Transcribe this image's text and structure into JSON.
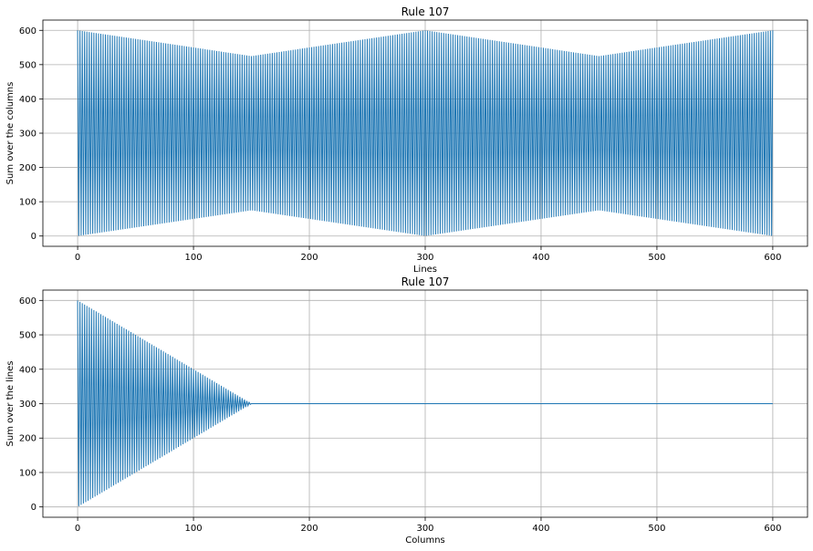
{
  "chart_data": [
    {
      "type": "line",
      "title": "Rule 107",
      "xlabel": "Lines",
      "ylabel": "Sum over the columns",
      "xlim": [
        -30,
        630
      ],
      "ylim": [
        -30,
        630
      ],
      "xticks": [
        0,
        100,
        200,
        300,
        400,
        500,
        600
      ],
      "yticks": [
        0,
        100,
        200,
        300,
        400,
        500,
        600
      ],
      "grid": true,
      "color": "#1f77b4",
      "series": [
        {
          "pattern": "alternating",
          "x_range": [
            0,
            600
          ],
          "upper_envelope": {
            "x": [
              0,
              150,
              300,
              450,
              600
            ],
            "y": [
              600,
              525,
              600,
              525,
              600
            ]
          },
          "lower_envelope": {
            "x": [
              0,
              150,
              300,
              450,
              600
            ],
            "y": [
              0,
              75,
              0,
              75,
              0
            ]
          }
        }
      ]
    },
    {
      "type": "line",
      "title": "Rule 107",
      "xlabel": "Columns",
      "ylabel": "Sum over the lines",
      "xlim": [
        -30,
        630
      ],
      "ylim": [
        -30,
        630
      ],
      "xticks": [
        0,
        100,
        200,
        300,
        400,
        500,
        600
      ],
      "yticks": [
        0,
        100,
        200,
        300,
        400,
        500,
        600
      ],
      "grid": true,
      "color": "#1f77b4",
      "series": [
        {
          "pattern": "alternating",
          "x_range": [
            0,
            600
          ],
          "upper_envelope": {
            "x": [
              0,
              150,
              600
            ],
            "y": [
              600,
              300,
              300
            ]
          },
          "lower_envelope": {
            "x": [
              0,
              150,
              600
            ],
            "y": [
              0,
              300,
              300
            ]
          }
        }
      ]
    }
  ]
}
